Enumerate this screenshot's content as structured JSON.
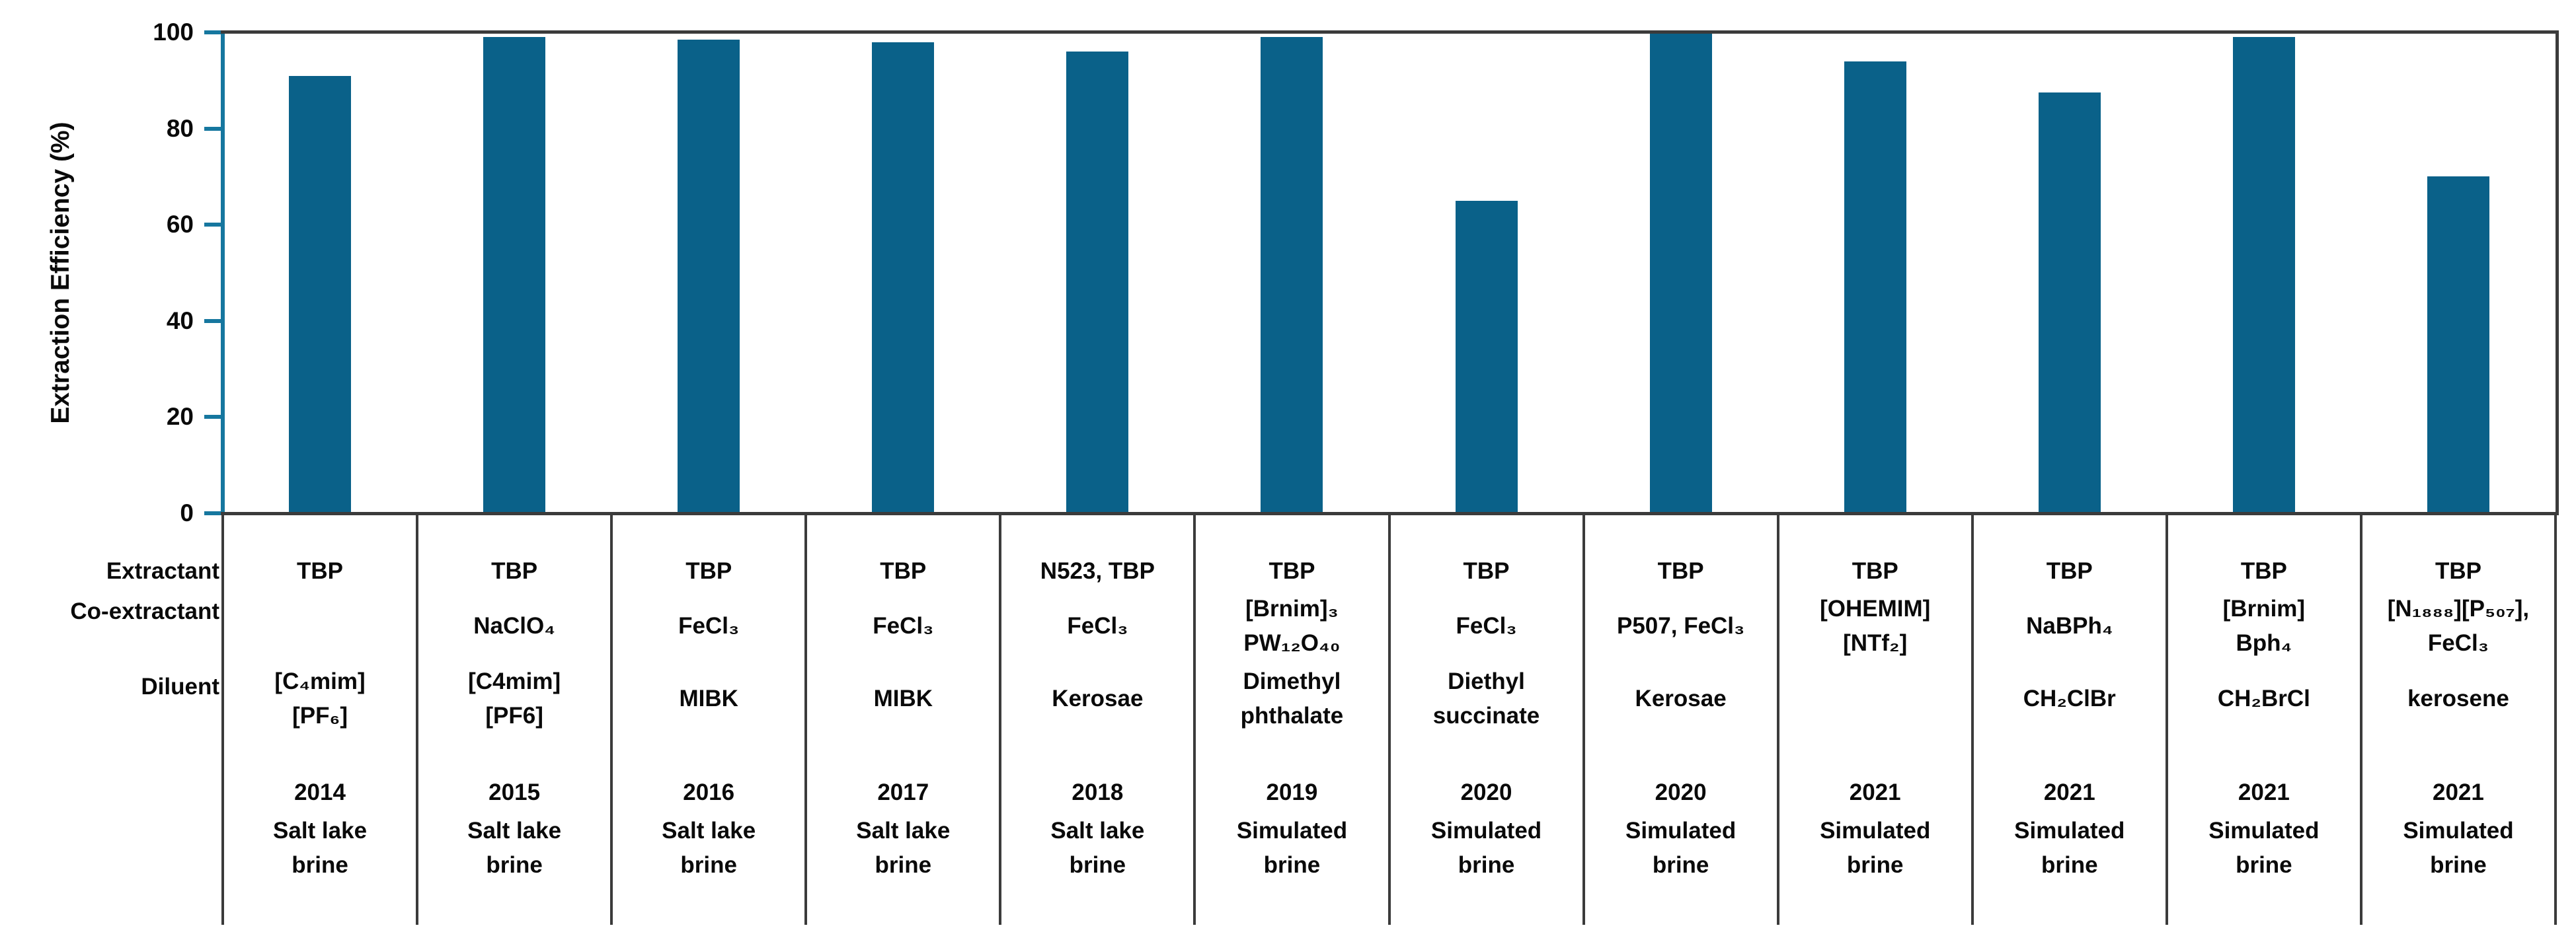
{
  "chart_data": {
    "type": "bar",
    "title": "",
    "ylabel": "Extraction Efficiency (%)",
    "ylim": [
      0,
      100
    ],
    "yticks": [
      0,
      20,
      40,
      60,
      80,
      100
    ],
    "grid": false,
    "legend": null,
    "bar_color": "#0a6189",
    "axis_color": "#16779f",
    "frame_color": "#3b3b3b",
    "text_color": "#0a0a0a",
    "row_headers": {
      "extractant": "Extractant",
      "coextractant": "Co-extractant",
      "diluent": "Diluent"
    },
    "values": [
      91,
      99,
      98.5,
      98,
      96,
      99,
      65,
      100,
      94,
      87.5,
      99,
      70
    ],
    "categories": [
      "2014 Salt lake brine",
      "2015 Salt lake brine",
      "2016 Salt lake brine",
      "2017 Salt lake brine",
      "2018 Salt lake brine",
      "2019 Simulated brine",
      "2020 Simulated brine",
      "2020 Simulated brine",
      "2021 Simulated brine",
      "2021 Simulated brine",
      "2021 Simulated brine",
      "2021 Simulated brine"
    ],
    "columns": [
      {
        "extractant": "TBP",
        "coextractant": "",
        "diluent": "[C₄mim]\n[PF₆]",
        "year": "2014",
        "source": "Salt lake\nbrine"
      },
      {
        "extractant": "TBP",
        "coextractant": "NaClO₄",
        "diluent": "[C4mim]\n[PF6]",
        "year": "2015",
        "source": "Salt lake\nbrine"
      },
      {
        "extractant": "TBP",
        "coextractant": "FeCl₃",
        "diluent": "MIBK",
        "year": "2016",
        "source": "Salt lake\nbrine"
      },
      {
        "extractant": "TBP",
        "coextractant": "FeCl₃",
        "diluent": "MIBK",
        "year": "2017",
        "source": "Salt lake\nbrine"
      },
      {
        "extractant": "N523, TBP",
        "coextractant": "FeCl₃",
        "diluent": "Kerosae",
        "year": "2018",
        "source": "Salt lake\nbrine"
      },
      {
        "extractant": "TBP",
        "coextractant": "[Brnim]₃\nPW₁₂O₄₀",
        "diluent": "Dimethyl\nphthalate",
        "year": "2019",
        "source": "Simulated\nbrine"
      },
      {
        "extractant": "TBP",
        "coextractant": "FeCl₃",
        "diluent": "Diethyl\nsuccinate",
        "year": "2020",
        "source": "Simulated\nbrine"
      },
      {
        "extractant": "TBP",
        "coextractant": "P507, FeCl₃",
        "diluent": "Kerosae",
        "year": "2020",
        "source": "Simulated\nbrine"
      },
      {
        "extractant": "TBP",
        "coextractant": "[OHEMIM]\n[NTf₂]",
        "diluent": "",
        "year": "2021",
        "source": "Simulated\nbrine"
      },
      {
        "extractant": "TBP",
        "coextractant": "NaBPh₄",
        "diluent": "CH₂ClBr",
        "year": "2021",
        "source": "Simulated\nbrine"
      },
      {
        "extractant": "TBP",
        "coextractant": "[Brnim]\nBph₄",
        "diluent": "CH₂BrCl",
        "year": "2021",
        "source": "Simulated\nbrine"
      },
      {
        "extractant": "TBP",
        "coextractant": "[N₁₈₈₈][P₅₀₇],\nFeCl₃",
        "diluent": "kerosene",
        "year": "2021",
        "source": "Simulated\nbrine"
      }
    ]
  }
}
